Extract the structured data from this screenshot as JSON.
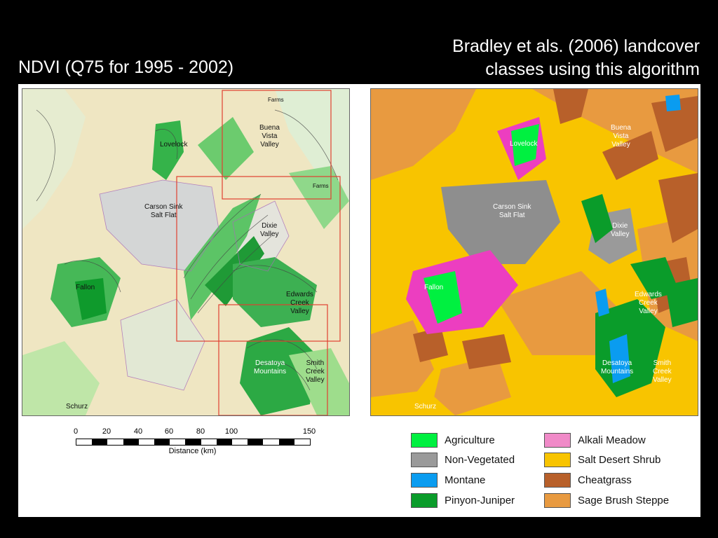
{
  "titles": {
    "left": "NDVI (Q75 for 1995 - 2002)",
    "right_line1": "Bradley et als. (2006) landcover",
    "right_line2": "classes using this algorithm"
  },
  "ndvi_labels": {
    "farms1": "Farms",
    "lovelock": "Lovelock",
    "buena_vista": [
      "Buena",
      "Vista",
      "Valley"
    ],
    "farms2": "Farms",
    "carson": [
      "Carson Sink",
      "Salt Flat"
    ],
    "dixie": [
      "Dixie",
      "Valley"
    ],
    "fallon": "Fallon",
    "edwards": [
      "Edwards",
      "Creek",
      "Valley"
    ],
    "desatoya": [
      "Desatoya",
      "Mountains"
    ],
    "smith": [
      "Smith",
      "Creek",
      "Valley"
    ],
    "schurz": "Schurz"
  },
  "landcover_labels": {
    "lovelock": "Lovelock",
    "buena_vista": [
      "Buena",
      "Vista",
      "Valley"
    ],
    "carson": [
      "Carson Sink",
      "Salt Flat"
    ],
    "dixie": [
      "Dixie",
      "Valley"
    ],
    "fallon": "Fallon",
    "edwards": [
      "Edwards",
      "Creek",
      "Valley"
    ],
    "desatoya": [
      "Desatoya",
      "Mountains"
    ],
    "smith": [
      "Smith",
      "Creek",
      "Valley"
    ],
    "schurz": "Schurz"
  },
  "scale": {
    "ticks": [
      "0",
      "20",
      "40",
      "60",
      "80",
      "100",
      "150"
    ],
    "caption": "Distance (km)"
  },
  "legend": [
    {
      "label": "Agriculture",
      "color": "#00f040"
    },
    {
      "label": "Non-Vegetated",
      "color": "#9a9a9a"
    },
    {
      "label": "Montane",
      "color": "#0a9cf0"
    },
    {
      "label": "Pinyon-Juniper",
      "color": "#0a9c2a"
    },
    {
      "label": "Alkali Meadow",
      "color": "#f08ac8"
    },
    {
      "label": "Salt Desert Shrub",
      "color": "#f8c400"
    },
    {
      "label": "Cheatgrass",
      "color": "#b8602a"
    },
    {
      "label": "Sage Brush Steppe",
      "color": "#e89a40"
    }
  ]
}
